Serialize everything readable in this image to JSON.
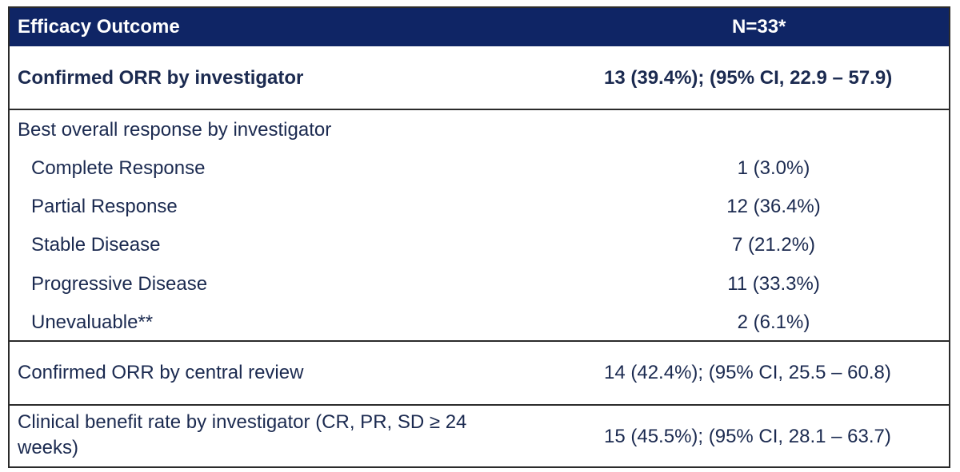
{
  "header": {
    "outcome_label": "Efficacy Outcome",
    "n_label": "N=33*"
  },
  "rows": {
    "confirmed_orr_investigator": {
      "label": "Confirmed ORR by investigator",
      "value": "13 (39.4%); (95% CI, 22.9 – 57.9)"
    },
    "best_overall_response": {
      "label": "Best overall response by investigator",
      "items": [
        {
          "label": "Complete Response",
          "value": "1 (3.0%)"
        },
        {
          "label": "Partial Response",
          "value": "12 (36.4%)"
        },
        {
          "label": "Stable Disease",
          "value": "7 (21.2%)"
        },
        {
          "label": "Progressive Disease",
          "value": "11 (33.3%)"
        },
        {
          "label": "Unevaluable**",
          "value": "2 (6.1%)"
        }
      ]
    },
    "confirmed_orr_central": {
      "label": "Confirmed ORR by central review",
      "value": "14 (42.4%); (95% CI, 25.5 – 60.8)"
    },
    "clinical_benefit": {
      "label_line1": "Clinical benefit rate by investigator (CR, PR, SD ≥ 24",
      "label_line2": "weeks)",
      "value": "15 (45.5%); (95% CI, 28.1 – 63.7)"
    }
  },
  "colors": {
    "header_bg": "#0f2565",
    "text": "#1b2a50"
  }
}
